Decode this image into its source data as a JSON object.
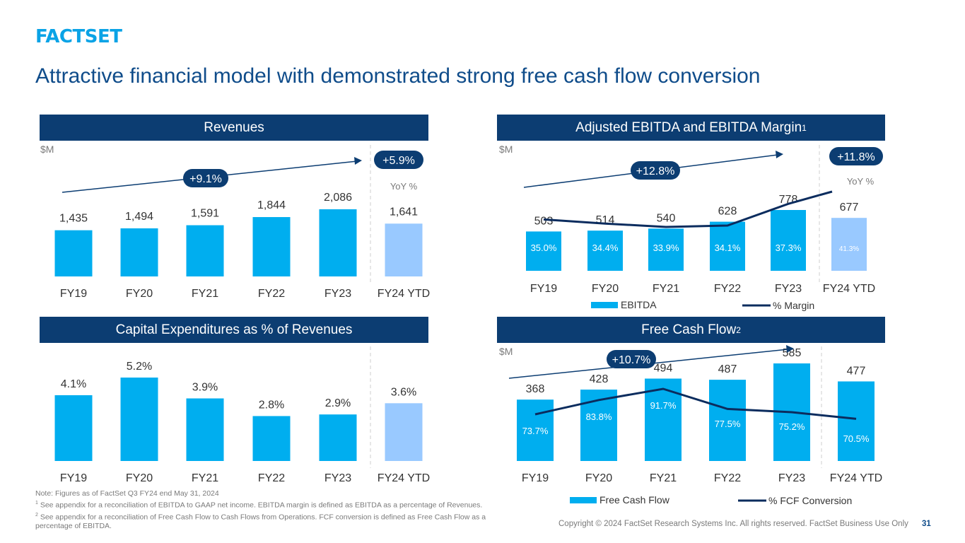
{
  "logo_text": "FACTSET",
  "title": "Attractive financial model with demonstrated strong free cash flow conversion",
  "notes": {
    "line1": "Note: Figures as of FactSet Q3 FY24 end May 31, 2024",
    "line2_sup": "1",
    "line2": " See appendix for a reconciliation of EBITDA to GAAP net income.  EBITDA margin is defined as EBITDA as a percentage of Revenues.",
    "line3_sup": "2",
    "line3": " See appendix for a reconciliation of Free Cash Flow to Cash Flows from Operations. FCF conversion is defined as Free Cash Flow as a percentage of EBITDA."
  },
  "copyright": "Copyright © 2024 FactSet Research Systems Inc. All rights reserved. FactSet Business Use Only",
  "page_number": "31",
  "colors": {
    "bar": "#00aeef",
    "bar_ytd": "#99c9ff",
    "navy": "#0c3d72",
    "line": "#0b2c5e"
  },
  "chart_data": [
    {
      "id": "revenues",
      "type": "bar",
      "title": "Revenues",
      "unit": "$M",
      "categories": [
        "FY19",
        "FY20",
        "FY21",
        "FY22",
        "FY23",
        "FY24 YTD"
      ],
      "values": [
        1435,
        1494,
        1591,
        1844,
        2086,
        1641
      ],
      "value_labels": [
        "1,435",
        "1,494",
        "1,591",
        "1,844",
        "2,086",
        "1,641"
      ],
      "cagr_label": "+9.1%",
      "ytd_badge": "+5.9%",
      "ytd_caption": "YoY %"
    },
    {
      "id": "ebitda",
      "type": "bar",
      "title": "Adjusted EBITDA and EBITDA Margin",
      "title_sup": "1",
      "unit": "$M",
      "categories": [
        "FY19",
        "FY20",
        "FY21",
        "FY22",
        "FY23",
        "FY24 YTD"
      ],
      "series": [
        {
          "name": "EBITDA",
          "values": [
            503,
            514,
            540,
            628,
            778,
            677
          ],
          "value_labels": [
            "503",
            "514",
            "540",
            "628",
            "778",
            "677"
          ]
        },
        {
          "name": "% Margin",
          "values": [
            35.0,
            34.4,
            33.9,
            34.1,
            37.3,
            41.3
          ],
          "value_labels": [
            "35.0%",
            "34.4%",
            "33.9%",
            "34.1%",
            "37.3%",
            "41.3%"
          ]
        }
      ],
      "cagr_label": "+12.8%",
      "ytd_badge": "+11.8%",
      "ytd_caption": "YoY %"
    },
    {
      "id": "capex",
      "type": "bar",
      "title": "Capital Expenditures as % of Revenues",
      "categories": [
        "FY19",
        "FY20",
        "FY21",
        "FY22",
        "FY23",
        "FY24 YTD"
      ],
      "values": [
        4.1,
        5.2,
        3.9,
        2.8,
        2.9,
        3.6
      ],
      "value_labels": [
        "4.1%",
        "5.2%",
        "3.9%",
        "2.8%",
        "2.9%",
        "3.6%"
      ]
    },
    {
      "id": "fcf",
      "type": "bar",
      "title": "Free Cash Flow",
      "title_sup": "2",
      "unit": "$M",
      "categories": [
        "FY19",
        "FY20",
        "FY21",
        "FY22",
        "FY23",
        "FY24 YTD"
      ],
      "series": [
        {
          "name": "Free Cash Flow",
          "values": [
            368,
            428,
            494,
            487,
            585,
            477
          ],
          "value_labels": [
            "368",
            "428",
            "494",
            "487",
            "585",
            "477"
          ]
        },
        {
          "name": "% FCF Conversion",
          "values": [
            73.7,
            83.8,
            91.7,
            77.5,
            75.2,
            70.5
          ],
          "value_labels": [
            "73.7%",
            "83.8%",
            "91.7%",
            "77.5%",
            "75.2%",
            "70.5%"
          ]
        }
      ],
      "cagr_label": "+10.7%"
    }
  ]
}
